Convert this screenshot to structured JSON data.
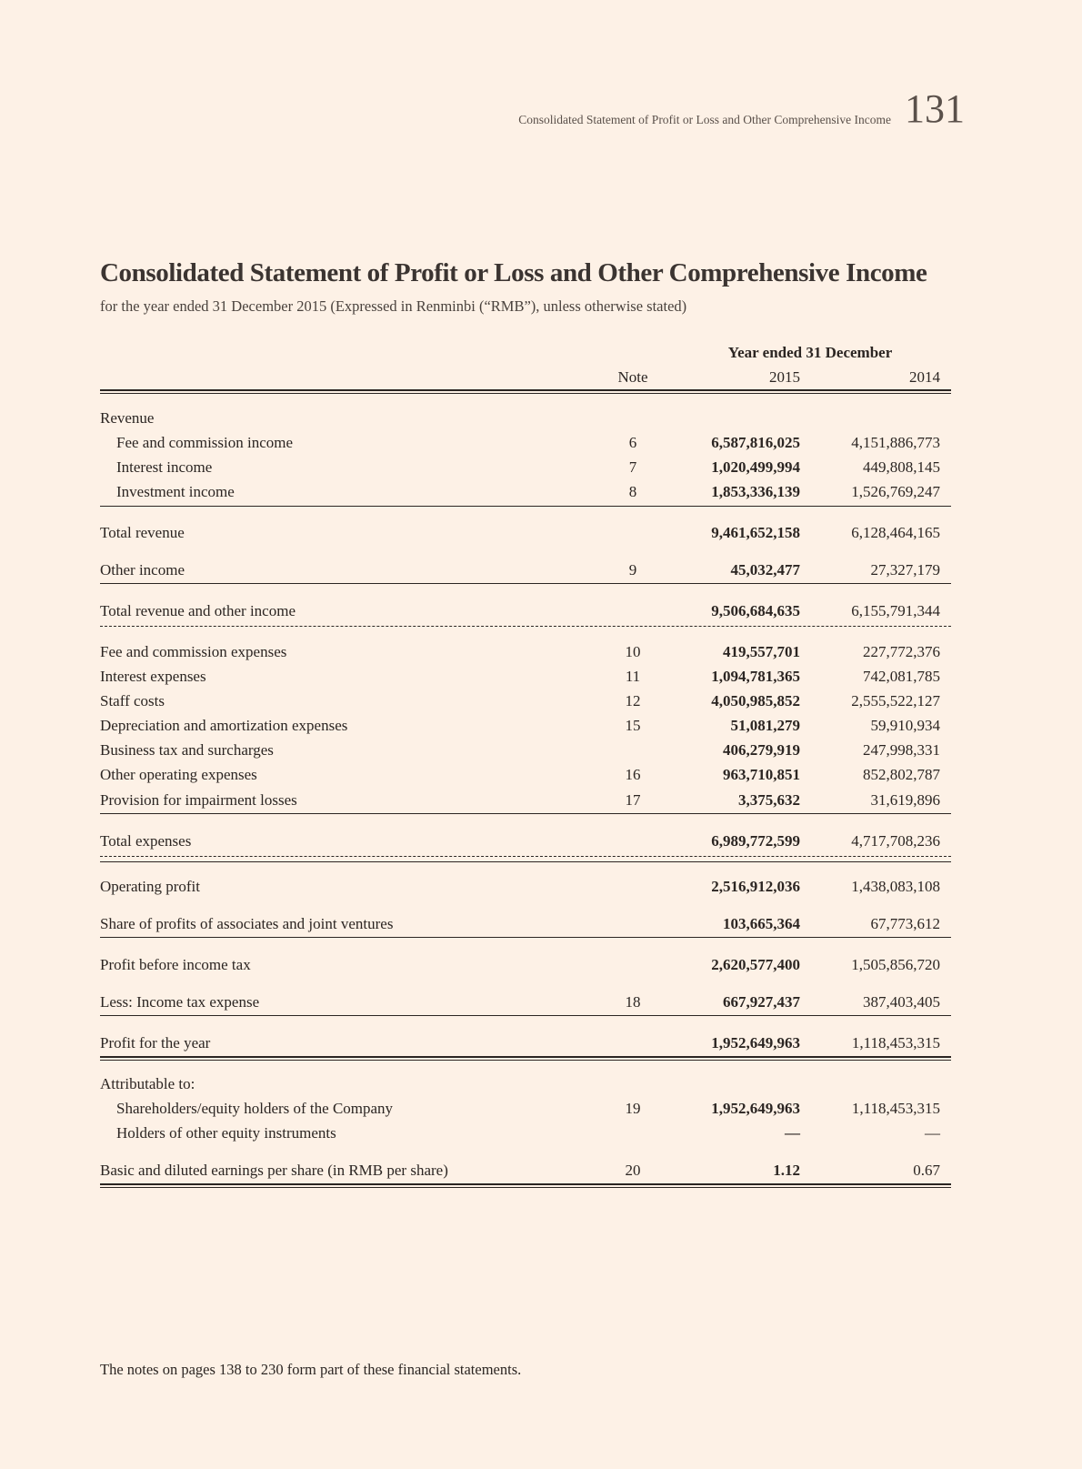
{
  "header": {
    "running_title": "Consolidated Statement of Profit or Loss and Other Comprehensive Income",
    "page_number": "131"
  },
  "title": "Consolidated Statement of Profit or Loss and Other Comprehensive Income",
  "subtitle": "for the year ended 31 December 2015 (Expressed in Renminbi (“RMB”), unless otherwise stated)",
  "table": {
    "group_header": "Year ended 31 December",
    "columns": [
      "Note",
      "2015",
      "2014"
    ],
    "rows": [
      {
        "label": "Revenue",
        "note": "",
        "v2015": "",
        "v2014": ""
      },
      {
        "label": "Fee and commission income",
        "note": "6",
        "v2015": "6,587,816,025",
        "v2014": "4,151,886,773",
        "indent": true
      },
      {
        "label": "Interest income",
        "note": "7",
        "v2015": "1,020,499,994",
        "v2014": "449,808,145",
        "indent": true
      },
      {
        "label": "Investment income",
        "note": "8",
        "v2015": "1,853,336,139",
        "v2014": "1,526,769,247",
        "indent": true
      },
      {
        "label": "Total revenue",
        "note": "",
        "v2015": "9,461,652,158",
        "v2014": "6,128,464,165"
      },
      {
        "label": "Other income",
        "note": "9",
        "v2015": "45,032,477",
        "v2014": "27,327,179"
      },
      {
        "label": "Total revenue and other income",
        "note": "",
        "v2015": "9,506,684,635",
        "v2014": "6,155,791,344"
      },
      {
        "label": "Fee and commission expenses",
        "note": "10",
        "v2015": "419,557,701",
        "v2014": "227,772,376"
      },
      {
        "label": "Interest expenses",
        "note": "11",
        "v2015": "1,094,781,365",
        "v2014": "742,081,785"
      },
      {
        "label": "Staff costs",
        "note": "12",
        "v2015": "4,050,985,852",
        "v2014": "2,555,522,127"
      },
      {
        "label": "Depreciation and amortization expenses",
        "note": "15",
        "v2015": "51,081,279",
        "v2014": "59,910,934"
      },
      {
        "label": "Business tax and surcharges",
        "note": "",
        "v2015": "406,279,919",
        "v2014": "247,998,331"
      },
      {
        "label": "Other operating expenses",
        "note": "16",
        "v2015": "963,710,851",
        "v2014": "852,802,787"
      },
      {
        "label": "Provision for impairment losses",
        "note": "17",
        "v2015": "3,375,632",
        "v2014": "31,619,896"
      },
      {
        "label": "Total expenses",
        "note": "",
        "v2015": "6,989,772,599",
        "v2014": "4,717,708,236"
      },
      {
        "label": "Operating profit",
        "note": "",
        "v2015": "2,516,912,036",
        "v2014": "1,438,083,108"
      },
      {
        "label": "Share of profits of associates and joint ventures",
        "note": "",
        "v2015": "103,665,364",
        "v2014": "67,773,612"
      },
      {
        "label": "Profit before income tax",
        "note": "",
        "v2015": "2,620,577,400",
        "v2014": "1,505,856,720"
      },
      {
        "label": "Less: Income tax expense",
        "note": "18",
        "v2015": "667,927,437",
        "v2014": "387,403,405"
      },
      {
        "label": "Profit for the year",
        "note": "",
        "v2015": "1,952,649,963",
        "v2014": "1,118,453,315"
      },
      {
        "label": "Attributable to:",
        "note": "",
        "v2015": "",
        "v2014": ""
      },
      {
        "label": "Shareholders/equity holders of the Company",
        "note": "19",
        "v2015": "1,952,649,963",
        "v2014": "1,118,453,315",
        "indent": true
      },
      {
        "label": "Holders of other equity instruments",
        "note": "",
        "v2015": "—",
        "v2014": "—",
        "indent": true
      },
      {
        "label": "Basic and diluted earnings per share (in RMB per share)",
        "note": "20",
        "v2015": "1.12",
        "v2014": "0.67"
      }
    ]
  },
  "footer": "The notes on pages 138 to 230 form part of these financial statements."
}
